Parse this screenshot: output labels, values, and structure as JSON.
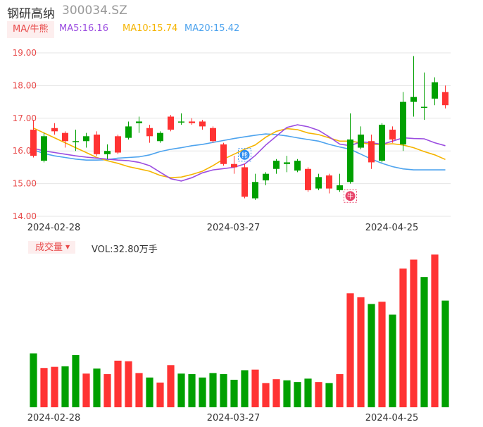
{
  "header": {
    "name": "钢研高纳",
    "code": "300034.SZ"
  },
  "ma": {
    "label": "MA/牛熊",
    "ma5": "MA5:16.16",
    "ma10": "MA10:15.74",
    "ma20": "MA20:15.42"
  },
  "volume": {
    "label": "成交量",
    "text": "VOL:32.80万手"
  },
  "colors": {
    "up": "#ff3333",
    "down": "#00a000",
    "ma5": "#9b4de0",
    "ma10": "#f5b400",
    "ma20": "#4da3ee",
    "grid": "#e6e6e6"
  },
  "icons": {
    "bear_marker": "bear-icon",
    "bull_marker": "bull-icon",
    "bear_text": "熊",
    "bull_text": "牛"
  },
  "chart_data": {
    "type": "candlestick",
    "y_ticks": [
      "19.00",
      "18.00",
      "17.00",
      "16.00",
      "15.00",
      "14.00"
    ],
    "ylim": [
      14.0,
      19.0
    ],
    "x_tick_labels": [
      {
        "index": 1,
        "label": "2024-02-28"
      },
      {
        "index": 18,
        "label": "2024-03-27"
      },
      {
        "index": 33,
        "label": "2024-04-25"
      }
    ],
    "candles": [
      {
        "o": 15.85,
        "c": 16.65,
        "h": 16.95,
        "l": 15.8
      },
      {
        "o": 16.45,
        "c": 15.7,
        "h": 16.55,
        "l": 15.65
      },
      {
        "o": 16.6,
        "c": 16.7,
        "h": 16.85,
        "l": 16.5
      },
      {
        "o": 16.3,
        "c": 16.55,
        "h": 16.6,
        "l": 16.1
      },
      {
        "o": 16.3,
        "c": 16.3,
        "h": 16.65,
        "l": 16.0
      },
      {
        "o": 16.45,
        "c": 16.3,
        "h": 16.55,
        "l": 16.1
      },
      {
        "o": 15.9,
        "c": 16.5,
        "h": 16.6,
        "l": 15.85
      },
      {
        "o": 16.0,
        "c": 15.9,
        "h": 16.2,
        "l": 15.75
      },
      {
        "o": 15.95,
        "c": 16.45,
        "h": 16.5,
        "l": 15.9
      },
      {
        "o": 16.75,
        "c": 16.4,
        "h": 16.9,
        "l": 16.35
      },
      {
        "o": 16.9,
        "c": 16.85,
        "h": 17.05,
        "l": 16.55
      },
      {
        "o": 16.45,
        "c": 16.7,
        "h": 16.8,
        "l": 16.25
      },
      {
        "o": 16.55,
        "c": 16.3,
        "h": 16.6,
        "l": 16.25
      },
      {
        "o": 16.65,
        "c": 17.05,
        "h": 17.1,
        "l": 16.6
      },
      {
        "o": 16.9,
        "c": 16.9,
        "h": 17.15,
        "l": 16.8
      },
      {
        "o": 16.85,
        "c": 16.9,
        "h": 17.0,
        "l": 16.8
      },
      {
        "o": 16.75,
        "c": 16.9,
        "h": 16.95,
        "l": 16.65
      },
      {
        "o": 16.3,
        "c": 16.7,
        "h": 16.75,
        "l": 16.25
      },
      {
        "o": 15.6,
        "c": 16.2,
        "h": 16.25,
        "l": 15.55
      },
      {
        "o": 15.5,
        "c": 15.6,
        "h": 15.85,
        "l": 15.3
      },
      {
        "o": 14.6,
        "c": 15.5,
        "h": 15.6,
        "l": 14.55
      },
      {
        "o": 15.05,
        "c": 14.55,
        "h": 15.3,
        "l": 14.5
      },
      {
        "o": 15.3,
        "c": 15.1,
        "h": 15.35,
        "l": 14.95
      },
      {
        "o": 15.7,
        "c": 15.45,
        "h": 15.75,
        "l": 15.3
      },
      {
        "o": 15.65,
        "c": 15.6,
        "h": 15.85,
        "l": 15.35
      },
      {
        "o": 15.7,
        "c": 15.4,
        "h": 15.75,
        "l": 15.35
      },
      {
        "o": 14.8,
        "c": 15.45,
        "h": 15.5,
        "l": 14.75
      },
      {
        "o": 15.2,
        "c": 14.85,
        "h": 15.3,
        "l": 14.8
      },
      {
        "o": 14.85,
        "c": 15.25,
        "h": 15.3,
        "l": 14.7
      },
      {
        "o": 14.95,
        "c": 14.8,
        "h": 15.3,
        "l": 14.75
      },
      {
        "o": 16.35,
        "c": 15.05,
        "h": 17.15,
        "l": 15.0
      },
      {
        "o": 16.5,
        "c": 16.1,
        "h": 16.75,
        "l": 16.05
      },
      {
        "o": 15.65,
        "c": 16.3,
        "h": 16.5,
        "l": 15.45
      },
      {
        "o": 16.8,
        "c": 15.7,
        "h": 16.85,
        "l": 15.65
      },
      {
        "o": 16.35,
        "c": 16.65,
        "h": 16.75,
        "l": 16.25
      },
      {
        "o": 17.5,
        "c": 16.2,
        "h": 17.8,
        "l": 16.0
      },
      {
        "o": 17.65,
        "c": 17.5,
        "h": 18.9,
        "l": 17.05
      },
      {
        "o": 17.35,
        "c": 17.35,
        "h": 18.4,
        "l": 16.95
      },
      {
        "o": 18.1,
        "c": 17.6,
        "h": 18.25,
        "l": 17.4
      },
      {
        "o": 17.4,
        "c": 17.8,
        "h": 18.0,
        "l": 17.3
      }
    ],
    "ma5": [
      16.08,
      16.0,
      15.95,
      15.9,
      15.85,
      15.81,
      15.78,
      15.75,
      15.72,
      15.7,
      15.65,
      15.55,
      15.35,
      15.15,
      15.08,
      15.18,
      15.33,
      15.42,
      15.46,
      15.5,
      15.6,
      15.86,
      16.18,
      16.45,
      16.72,
      16.8,
      16.74,
      16.63,
      16.43,
      16.21,
      16.16,
      16.28,
      16.25,
      16.2,
      16.3,
      16.4,
      16.38,
      16.37,
      16.25,
      16.16
    ],
    "ma10": [
      16.7,
      16.55,
      16.4,
      16.25,
      16.1,
      15.95,
      15.8,
      15.7,
      15.62,
      15.52,
      15.45,
      15.38,
      15.25,
      15.18,
      15.2,
      15.28,
      15.38,
      15.55,
      15.75,
      15.9,
      16.05,
      16.18,
      16.42,
      16.6,
      16.68,
      16.65,
      16.55,
      16.5,
      16.4,
      16.3,
      16.3,
      16.25,
      16.2,
      16.2,
      16.22,
      16.18,
      16.1,
      15.98,
      15.88,
      15.74
    ],
    "ma20": [
      16.03,
      15.92,
      15.85,
      15.8,
      15.75,
      15.72,
      15.72,
      15.73,
      15.78,
      15.8,
      15.82,
      15.88,
      15.98,
      16.05,
      16.1,
      16.16,
      16.2,
      16.26,
      16.32,
      16.38,
      16.43,
      16.48,
      16.52,
      16.5,
      16.46,
      16.4,
      16.35,
      16.3,
      16.2,
      16.12,
      16.05,
      15.9,
      15.75,
      15.62,
      15.52,
      15.45,
      15.42,
      15.42,
      15.42,
      15.42
    ],
    "ma_markers": [
      {
        "index": 20,
        "type": "bear",
        "value": 15.88
      },
      {
        "index": 30,
        "type": "bull",
        "value": 14.62
      }
    ],
    "volume_ylim": [
      0,
      24.6
    ],
    "volume": [
      {
        "v": 9.6,
        "up": false
      },
      {
        "v": 7.0,
        "up": true
      },
      {
        "v": 7.2,
        "up": true
      },
      {
        "v": 7.3,
        "up": false
      },
      {
        "v": 9.3,
        "up": false
      },
      {
        "v": 6.0,
        "up": true
      },
      {
        "v": 6.9,
        "up": false
      },
      {
        "v": 5.9,
        "up": true
      },
      {
        "v": 8.3,
        "up": true
      },
      {
        "v": 8.2,
        "up": true
      },
      {
        "v": 6.1,
        "up": true
      },
      {
        "v": 5.3,
        "up": false
      },
      {
        "v": 4.4,
        "up": true
      },
      {
        "v": 7.5,
        "up": true
      },
      {
        "v": 6.0,
        "up": false
      },
      {
        "v": 5.9,
        "up": false
      },
      {
        "v": 5.3,
        "up": false
      },
      {
        "v": 6.1,
        "up": false
      },
      {
        "v": 5.9,
        "up": false
      },
      {
        "v": 4.9,
        "up": false
      },
      {
        "v": 6.6,
        "up": false
      },
      {
        "v": 6.7,
        "up": true
      },
      {
        "v": 4.3,
        "up": true
      },
      {
        "v": 5.0,
        "up": true
      },
      {
        "v": 4.8,
        "up": false
      },
      {
        "v": 4.5,
        "up": false
      },
      {
        "v": 5.1,
        "up": false
      },
      {
        "v": 4.5,
        "up": true
      },
      {
        "v": 4.3,
        "up": false
      },
      {
        "v": 5.9,
        "up": true
      },
      {
        "v": 20.3,
        "up": true
      },
      {
        "v": 19.6,
        "up": true
      },
      {
        "v": 18.4,
        "up": false
      },
      {
        "v": 18.8,
        "up": true
      },
      {
        "v": 16.5,
        "up": false
      },
      {
        "v": 24.7,
        "up": true
      },
      {
        "v": 26.3,
        "up": true
      },
      {
        "v": 23.2,
        "up": false
      },
      {
        "v": 27.2,
        "up": true
      },
      {
        "v": 19.0,
        "up": false
      }
    ]
  }
}
